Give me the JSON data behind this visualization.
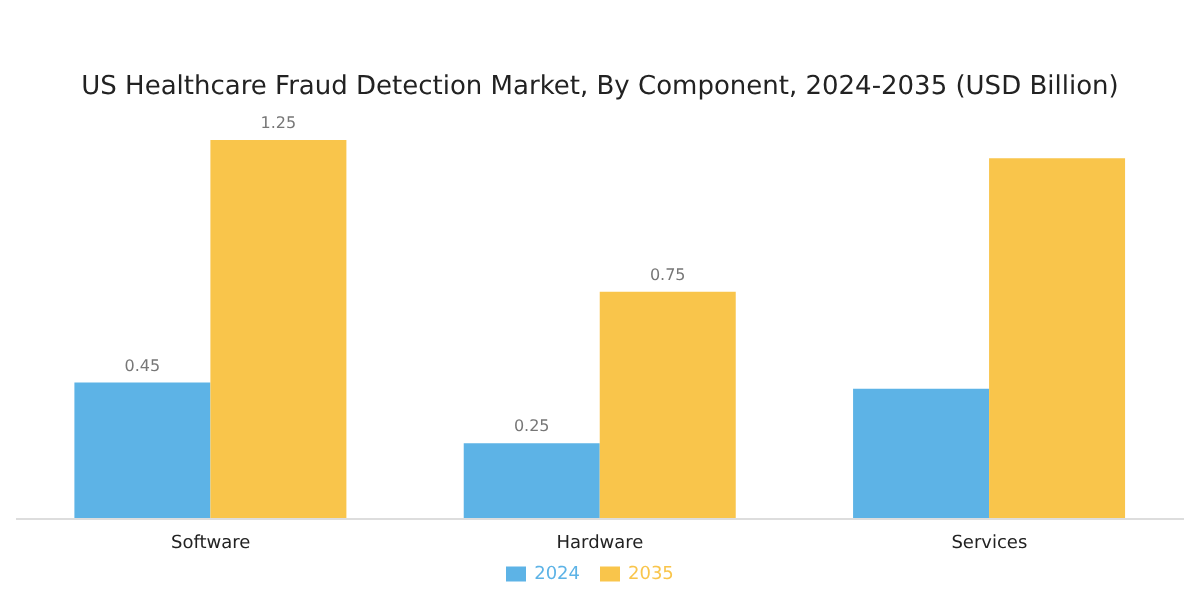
{
  "chart_data": {
    "type": "bar",
    "title": "US Healthcare Fraud Detection Market, By Component, 2024-2035 (USD Billion)",
    "categories": [
      "Software",
      "Hardware",
      "Services"
    ],
    "series": [
      {
        "name": "2024",
        "color": "#5db3e6",
        "values": [
          0.45,
          0.25,
          0.43
        ],
        "value_labels": [
          "0.45",
          "0.25",
          null
        ]
      },
      {
        "name": "2035",
        "color": "#f9c54b",
        "values": [
          1.25,
          0.75,
          1.19
        ],
        "value_labels": [
          "1.25",
          "0.75",
          null
        ]
      }
    ],
    "ylim": [
      0,
      1.25
    ],
    "tick_labels": "x",
    "legend": "bottom",
    "grid": false
  }
}
